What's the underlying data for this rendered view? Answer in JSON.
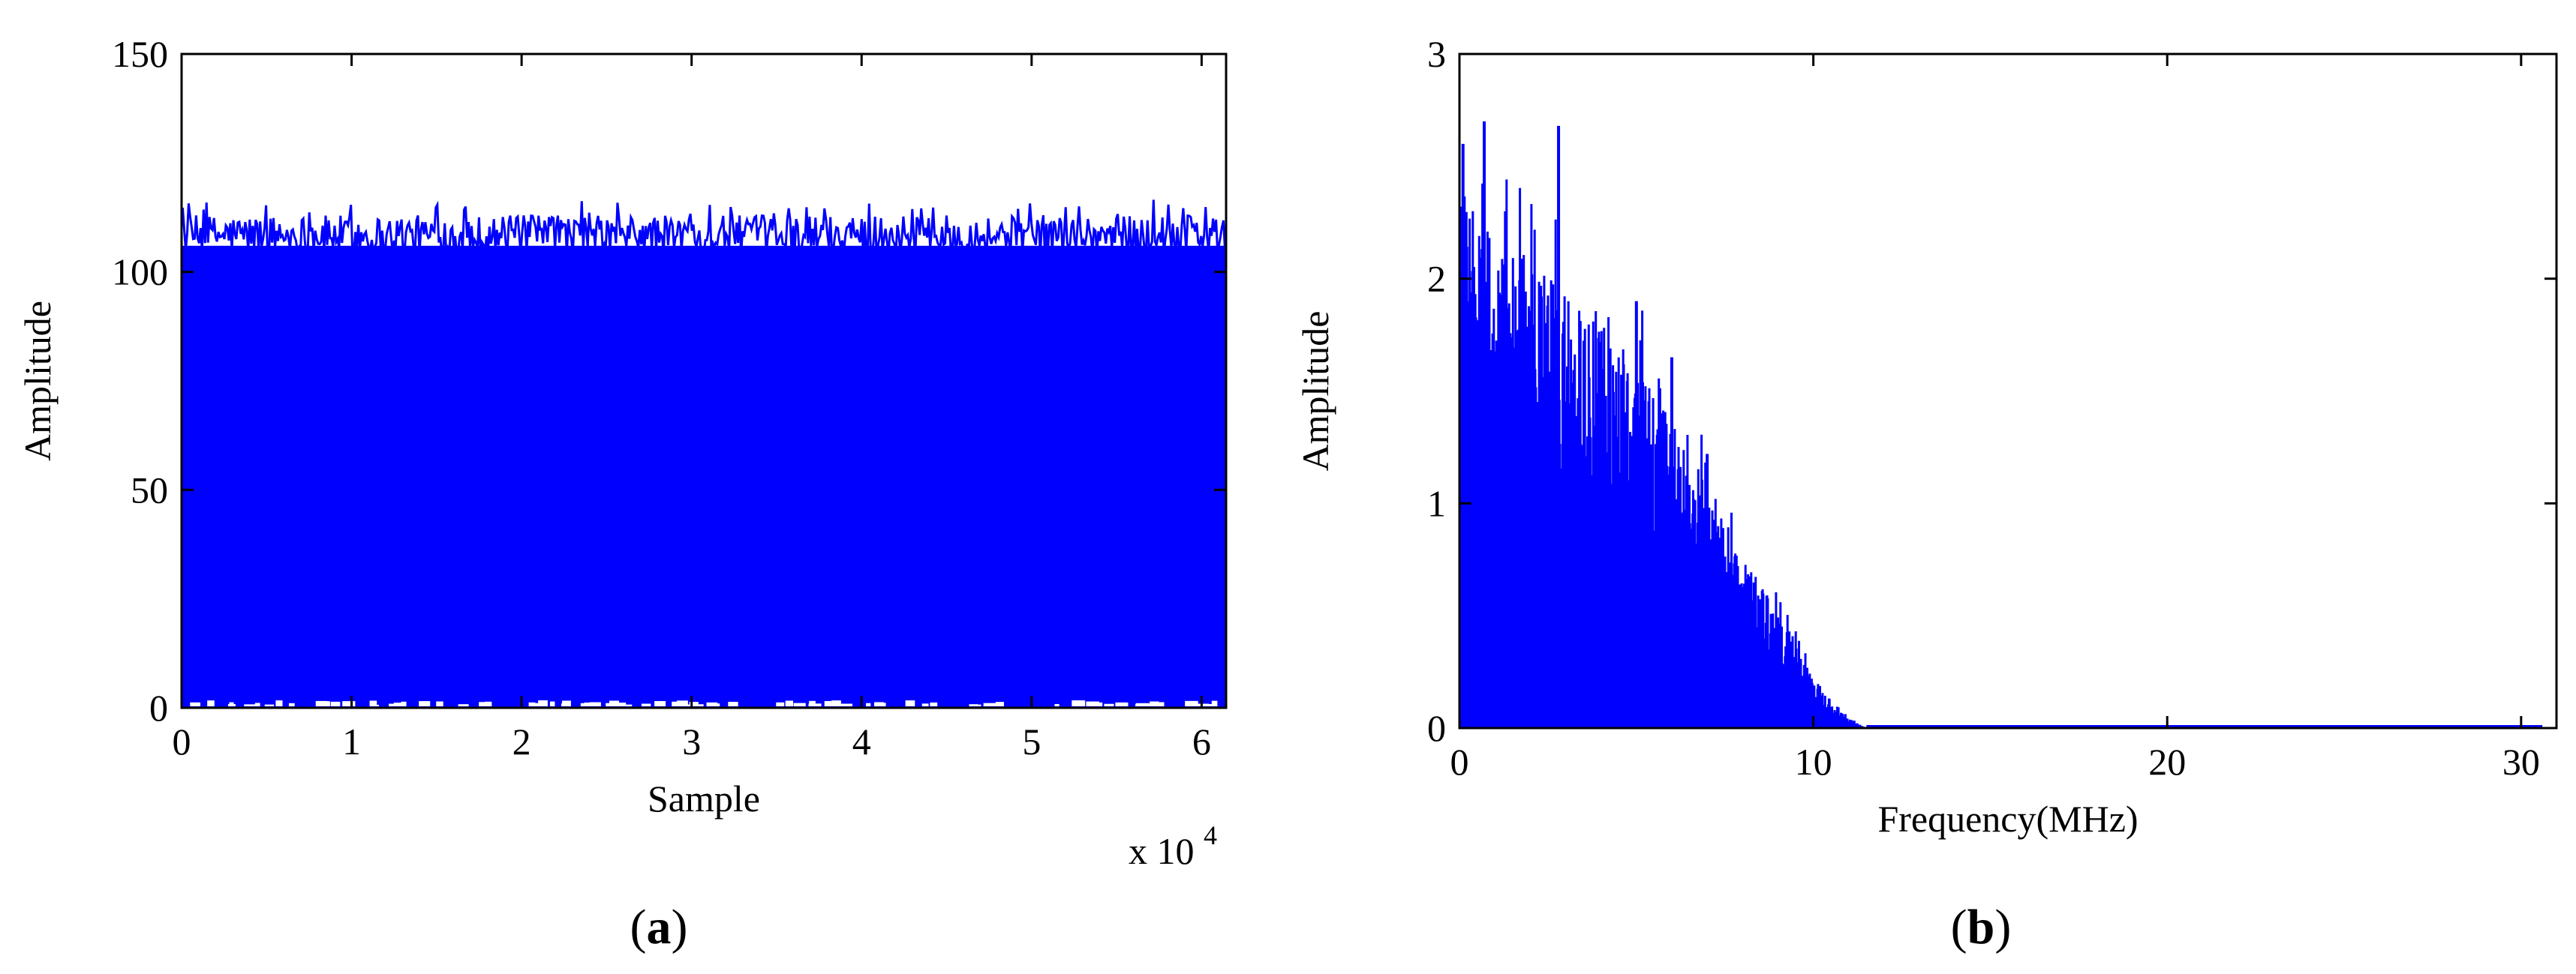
{
  "colors": {
    "series": "#0000ff",
    "axis": "#000000",
    "background": "#ffffff"
  },
  "chart_data": [
    {
      "type": "bar",
      "panel_label": "a",
      "title": "",
      "xlabel": "Sample",
      "ylabel": "Amplitude",
      "x_multiplier": "x 10",
      "x_multiplier_exponent": "4",
      "xlim": [
        0,
        6.144
      ],
      "ylim": [
        0,
        150
      ],
      "xticks": [
        0,
        1,
        2,
        3,
        4,
        5,
        6
      ],
      "xtick_labels": [
        "0",
        "1",
        "2",
        "3",
        "4",
        "5",
        "6"
      ],
      "yticks": [
        0,
        50,
        100,
        150
      ],
      "ytick_labels": [
        "0",
        "50",
        "100",
        "150"
      ],
      "grid": false,
      "series": [
        {
          "style": "dense random samples",
          "typical_max": 110,
          "peak_max": 117,
          "min_level": 0
        }
      ]
    },
    {
      "type": "bar",
      "panel_label": "b",
      "title": "",
      "xlabel": "Frequency(MHz)",
      "ylabel": "Amplitude",
      "xlim": [
        0,
        31
      ],
      "ylim": [
        0,
        3
      ],
      "xticks": [
        0,
        10,
        20,
        30
      ],
      "xtick_labels": [
        "0",
        "10",
        "20",
        "30"
      ],
      "yticks": [
        0,
        1,
        2,
        3
      ],
      "ytick_labels": [
        "0",
        "1",
        "2",
        "3"
      ],
      "grid": false,
      "series": [
        {
          "style": "spectrum",
          "envelope_x": [
            0,
            0.5,
            1,
            2,
            3,
            4,
            5,
            6,
            7,
            8,
            9,
            10,
            10.5,
            11,
            11.5,
            31
          ],
          "envelope_y": [
            2.3,
            2.2,
            2.1,
            2.0,
            1.85,
            1.7,
            1.55,
            1.3,
            1.05,
            0.75,
            0.48,
            0.22,
            0.1,
            0.04,
            0.0,
            0.0
          ],
          "peaks_x": [
            0.1,
            0.7,
            2.8,
            1.3,
            5.0,
            6.0,
            7.0
          ],
          "peaks_y": [
            2.6,
            2.7,
            2.68,
            2.3,
            1.9,
            1.65,
            1.22
          ]
        }
      ]
    }
  ]
}
